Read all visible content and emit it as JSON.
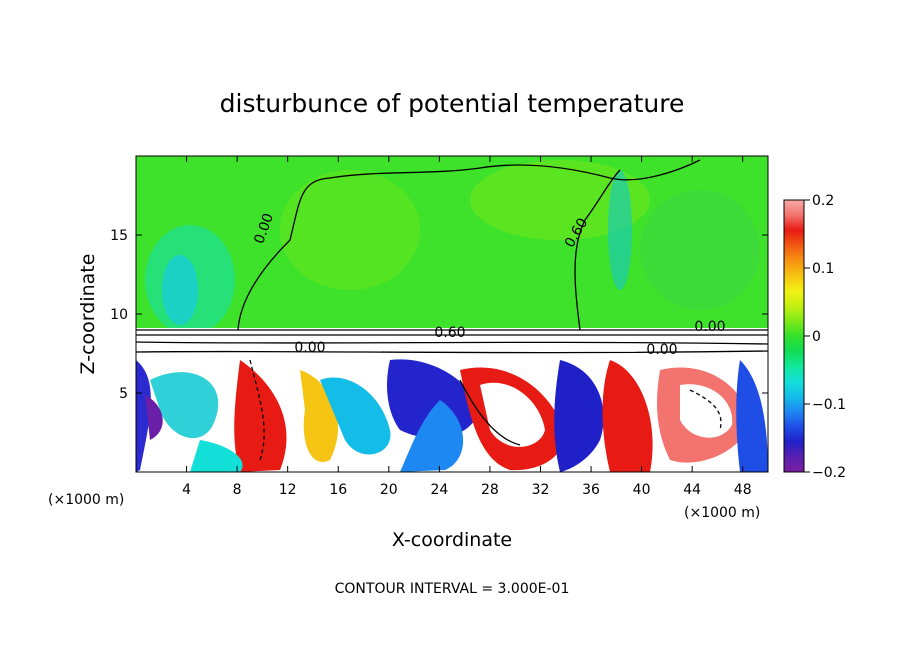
{
  "chart_data": {
    "type": "heatmap",
    "title": "disturbunce of potential temperature",
    "xlabel": "X-coordinate",
    "ylabel": "Z-coordinate",
    "x_unit": "(×1000 m)",
    "x_unit_right": "(×1000 m)",
    "xlim": [
      0,
      50
    ],
    "ylim": [
      0,
      20
    ],
    "x_ticks": [
      4,
      8,
      12,
      16,
      20,
      24,
      28,
      32,
      36,
      40,
      44,
      48
    ],
    "y_ticks": [
      5,
      10,
      15
    ],
    "footer": "CONTOUR INTERVAL = 3.000E-01",
    "colorbar": {
      "range": [
        -0.2,
        0.2
      ],
      "tick_values": [
        -0.2,
        -0.1,
        0,
        0.1,
        0.2
      ],
      "tick_labels": [
        "−0.2",
        "−0.1",
        "0",
        "0.1",
        "0.2"
      ],
      "colors": [
        "#7a1fa0",
        "#5a1fb0",
        "#2020c8",
        "#1f4ee6",
        "#1e88f2",
        "#13bde8",
        "#12e0d8",
        "#10e89a",
        "#12dd55",
        "#33e02a",
        "#7fea18",
        "#c6ef12",
        "#f2f012",
        "#f6c412",
        "#f69212",
        "#f25a12",
        "#e81a14",
        "#f3736e",
        "#f7aaa8"
      ]
    },
    "contour_labels": [
      "0.00",
      "0.60",
      "0.00",
      "0.60",
      "0.00",
      "0.00"
    ],
    "fields": {
      "upper_layer_value": 0.02,
      "interface_height": 9.0,
      "lower_layer_min": -0.2,
      "lower_layer_max": 0.2
    }
  }
}
